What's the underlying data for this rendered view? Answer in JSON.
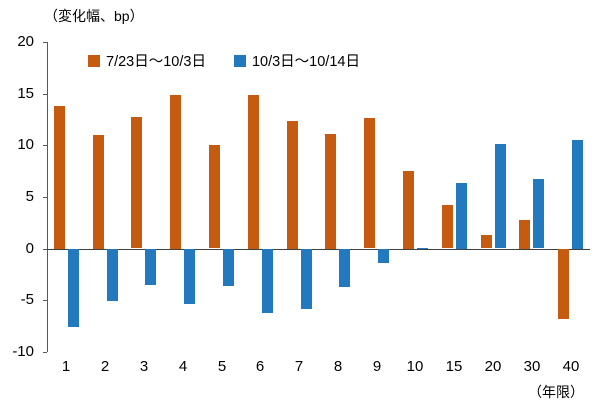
{
  "chart_data": {
    "type": "bar",
    "title": "",
    "ylabel": "（変化幅、bp）",
    "xlabel": "（年限）",
    "ylim": [
      -10,
      20
    ],
    "yticks": [
      20,
      15,
      10,
      5,
      0,
      -5,
      -10
    ],
    "categories": [
      "1",
      "2",
      "3",
      "4",
      "5",
      "6",
      "7",
      "8",
      "9",
      "10",
      "15",
      "20",
      "30",
      "40"
    ],
    "series": [
      {
        "name": "7/23日～10/3日",
        "color": "#C55A11",
        "values": [
          13.8,
          11.0,
          12.7,
          14.9,
          10.0,
          14.9,
          12.4,
          11.1,
          12.6,
          7.5,
          4.2,
          1.3,
          2.8,
          -6.8
        ]
      },
      {
        "name": "10/3日～10/14日",
        "color": "#2379BD",
        "values": [
          -7.5,
          -5.0,
          -3.5,
          -5.3,
          -3.6,
          -6.2,
          -5.8,
          -3.7,
          -1.4,
          0.1,
          6.4,
          10.1,
          6.7,
          10.5
        ]
      }
    ],
    "legend_position": "top",
    "grid": false
  }
}
